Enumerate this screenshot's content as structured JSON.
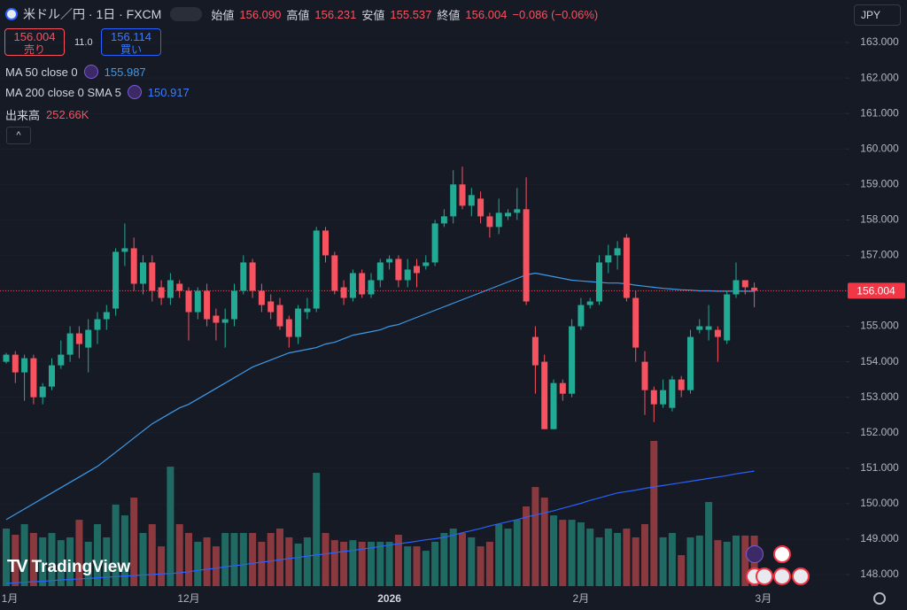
{
  "header": {
    "symbol": "米ドル／円 · 1日 · FXCM",
    "ohlc": [
      {
        "label": "始値",
        "value": "156.090"
      },
      {
        "label": "高値",
        "value": "156.231"
      },
      {
        "label": "安値",
        "value": "155.537"
      },
      {
        "label": "終値",
        "value": "156.004"
      }
    ],
    "change": "−0.086 (−0.06%)"
  },
  "trade": {
    "sell_price": "156.004",
    "sell_label": "売り",
    "spread": "11.0",
    "buy_price": "156.114",
    "buy_label": "買い"
  },
  "currency": "JPY",
  "watermark": "TradingView",
  "chart_data": {
    "type": "candlestick",
    "categories": [
      "1月",
      null,
      null,
      null,
      null,
      null,
      null,
      null,
      null,
      null,
      null,
      null,
      null,
      null,
      null,
      null,
      null,
      null,
      null,
      null,
      "12月",
      null,
      null,
      null,
      null,
      null,
      null,
      null,
      null,
      null,
      null,
      null,
      null,
      null,
      null,
      null,
      null,
      null,
      null,
      null,
      null,
      null,
      "2026",
      null,
      null,
      null,
      null,
      null,
      null,
      null,
      null,
      null,
      null,
      null,
      null,
      null,
      null,
      null,
      null,
      null,
      null,
      null,
      null,
      "2月",
      null,
      null,
      null,
      null,
      null,
      null,
      null,
      null,
      null,
      null,
      null,
      null,
      null,
      null,
      null,
      null,
      null,
      null,
      null,
      "3月"
    ],
    "open": [
      154.0,
      154.2,
      153.7,
      154.1,
      153.0,
      153.3,
      153.9,
      154.2,
      154.8,
      154.4,
      154.9,
      155.2,
      155.5,
      157.1,
      157.2,
      156.2,
      156.8,
      156.1,
      155.8,
      156.2,
      156.0,
      155.4,
      156.0,
      155.3,
      155.1,
      155.2,
      156.0,
      156.8,
      156.0,
      155.7,
      155.6,
      155.2,
      154.7,
      155.4,
      155.5,
      157.7,
      157.0,
      156.1,
      155.8,
      156.5,
      155.9,
      156.3,
      156.8,
      156.9,
      156.3,
      156.7,
      156.7,
      156.8,
      157.9,
      158.1,
      159.0,
      158.4,
      158.6,
      158.1,
      157.8,
      158.1,
      158.2,
      158.3,
      154.7,
      154.0,
      152.1,
      153.4,
      153.1,
      155.0,
      155.6,
      155.7,
      156.8,
      157.0,
      157.5,
      155.8,
      154.0,
      153.2,
      152.8,
      152.7,
      153.5,
      153.2,
      154.9,
      154.9,
      154.9,
      154.6,
      155.9,
      156.3,
      156.09,
      null
    ],
    "high": [
      154.25,
      154.3,
      154.2,
      154.2,
      153.4,
      154.1,
      154.6,
      155.0,
      155.0,
      155.2,
      155.4,
      155.6,
      157.2,
      157.9,
      157.5,
      157.0,
      157.0,
      156.3,
      156.5,
      156.3,
      156.1,
      156.1,
      156.2,
      155.5,
      155.5,
      156.2,
      157.0,
      156.9,
      156.2,
      155.9,
      155.8,
      155.3,
      155.6,
      155.8,
      157.8,
      157.8,
      157.1,
      156.3,
      156.6,
      156.6,
      156.5,
      156.9,
      157.0,
      157.0,
      156.9,
      156.9,
      157.0,
      158.0,
      158.3,
      159.4,
      159.5,
      158.9,
      158.8,
      158.2,
      158.6,
      158.3,
      158.9,
      159.2,
      155.0,
      154.2,
      153.5,
      153.5,
      155.2,
      155.8,
      155.8,
      157.0,
      157.3,
      157.4,
      157.6,
      156.0,
      154.3,
      153.3,
      153.5,
      153.6,
      153.6,
      154.9,
      155.2,
      155.6,
      155.0,
      156.0,
      156.8,
      156.3,
      156.231,
      null
    ],
    "low": [
      153.95,
      153.4,
      152.9,
      152.8,
      152.8,
      153.2,
      153.8,
      154.0,
      154.1,
      153.7,
      154.5,
      154.9,
      155.3,
      156.7,
      156.0,
      155.9,
      155.7,
      155.6,
      155.6,
      155.8,
      154.6,
      155.2,
      155.0,
      154.6,
      154.4,
      155.0,
      155.9,
      155.8,
      155.4,
      155.2,
      154.9,
      154.4,
      154.5,
      155.2,
      155.4,
      156.8,
      155.9,
      155.6,
      155.7,
      155.8,
      155.8,
      156.1,
      156.6,
      156.1,
      156.1,
      156.1,
      156.6,
      156.7,
      157.8,
      157.9,
      158.3,
      158.1,
      157.9,
      157.5,
      157.6,
      158.0,
      158.0,
      155.6,
      153.1,
      152.1,
      152.1,
      152.9,
      153.0,
      154.9,
      155.5,
      155.6,
      156.5,
      156.6,
      155.7,
      154.0,
      152.5,
      152.3,
      152.7,
      152.6,
      153.0,
      153.1,
      154.8,
      154.6,
      154.0,
      154.5,
      155.8,
      155.9,
      155.537,
      null
    ],
    "close": [
      154.2,
      153.7,
      154.1,
      153.0,
      153.3,
      153.9,
      154.2,
      154.8,
      154.5,
      154.9,
      155.2,
      155.4,
      157.1,
      157.2,
      156.2,
      156.8,
      156.0,
      155.8,
      156.3,
      156.0,
      155.4,
      156.0,
      155.2,
      155.1,
      155.2,
      156.0,
      156.8,
      156.0,
      155.6,
      155.4,
      155.0,
      154.7,
      155.5,
      155.5,
      157.7,
      157.0,
      156.0,
      155.8,
      156.5,
      155.9,
      156.3,
      156.8,
      156.9,
      156.3,
      156.6,
      156.5,
      156.8,
      157.9,
      158.1,
      159.0,
      158.4,
      158.7,
      158.1,
      157.8,
      158.2,
      158.2,
      158.3,
      155.7,
      153.9,
      152.1,
      153.4,
      153.1,
      155.0,
      155.6,
      155.7,
      156.8,
      157.0,
      157.2,
      155.8,
      154.4,
      153.2,
      152.8,
      153.2,
      153.5,
      153.2,
      154.7,
      155.0,
      155.0,
      154.7,
      155.9,
      156.3,
      156.1,
      156.004,
      null
    ],
    "up_color": "#22ab94",
    "down_color": "#f7525f",
    "ylim": [
      147.6,
      164.2
    ],
    "yticks": [
      {
        "value": 163,
        "label": "163.000"
      },
      {
        "value": 162,
        "label": "162.000"
      },
      {
        "value": 161,
        "label": "161.000"
      },
      {
        "value": 160,
        "label": "160.000"
      },
      {
        "value": 159,
        "label": "159.000"
      },
      {
        "value": 158,
        "label": "158.000"
      },
      {
        "value": 157,
        "label": "157.000"
      },
      {
        "value": 156,
        "label": "156.000"
      },
      {
        "value": 155,
        "label": "155.000"
      },
      {
        "value": 154,
        "label": "154.000"
      },
      {
        "value": 153,
        "label": "153.000"
      },
      {
        "value": 152,
        "label": "152.000"
      },
      {
        "value": 151,
        "label": "151.000"
      },
      {
        "value": 150,
        "label": "150.000"
      },
      {
        "value": 149,
        "label": "149.000"
      },
      {
        "value": 148,
        "label": "148.000"
      }
    ],
    "grid": true,
    "series": [
      {
        "name": "MA 50 close 0",
        "color": "#3d9ae8",
        "values": [
          149.55,
          149.7,
          149.85,
          150.0,
          150.15,
          150.3,
          150.45,
          150.6,
          150.75,
          150.9,
          151.05,
          151.25,
          151.45,
          151.65,
          151.85,
          152.05,
          152.25,
          152.4,
          152.55,
          152.7,
          152.8,
          152.95,
          153.1,
          153.25,
          153.4,
          153.55,
          153.7,
          153.85,
          153.95,
          154.05,
          154.15,
          154.25,
          154.3,
          154.35,
          154.4,
          154.5,
          154.55,
          154.65,
          154.75,
          154.8,
          154.85,
          154.9,
          155.0,
          155.05,
          155.15,
          155.25,
          155.35,
          155.45,
          155.55,
          155.65,
          155.75,
          155.85,
          155.95,
          156.05,
          156.15,
          156.25,
          156.35,
          156.45,
          156.5,
          156.45,
          156.4,
          156.35,
          156.3,
          156.28,
          156.26,
          156.24,
          156.22,
          156.22,
          156.2,
          156.16,
          156.13,
          156.1,
          156.07,
          156.05,
          156.03,
          156.02,
          156.0,
          156.0,
          155.99,
          155.99,
          155.99,
          155.99,
          155.987,
          null
        ]
      },
      {
        "name": "MA 200 close 0 SMA 5",
        "color": "#2962ff",
        "values": [
          147.75,
          147.77,
          147.78,
          147.8,
          147.81,
          147.83,
          147.85,
          147.86,
          147.88,
          147.89,
          147.91,
          147.93,
          147.94,
          147.96,
          147.97,
          147.99,
          148.0,
          148.02,
          148.03,
          148.05,
          148.08,
          148.12,
          148.15,
          148.18,
          148.22,
          148.25,
          148.28,
          148.32,
          148.35,
          148.38,
          148.42,
          148.45,
          148.48,
          148.52,
          148.55,
          148.58,
          148.62,
          148.65,
          148.68,
          148.72,
          148.75,
          148.79,
          148.83,
          148.87,
          148.9,
          148.94,
          148.98,
          149.01,
          149.05,
          149.11,
          149.18,
          149.24,
          149.3,
          149.37,
          149.43,
          149.49,
          149.55,
          149.62,
          149.68,
          149.74,
          149.8,
          149.87,
          149.94,
          150.01,
          150.09,
          150.16,
          150.23,
          150.3,
          150.34,
          150.38,
          150.43,
          150.47,
          150.51,
          150.55,
          150.59,
          150.63,
          150.67,
          150.71,
          150.75,
          150.79,
          150.84,
          150.88,
          150.917,
          null
        ]
      }
    ],
    "volume": {
      "name": "出来高",
      "last_label": "252.66K",
      "up_color": "#1f6b63",
      "down_color": "#8a3a3f",
      "values": [
        288,
        257,
        310,
        266,
        244,
        266,
        230,
        244,
        332,
        222,
        310,
        244,
        408,
        354,
        443,
        266,
        310,
        199,
        598,
        310,
        266,
        222,
        244,
        199,
        266,
        266,
        266,
        266,
        222,
        266,
        288,
        244,
        213,
        244,
        567,
        266,
        230,
        222,
        230,
        222,
        222,
        222,
        222,
        257,
        199,
        199,
        177,
        222,
        266,
        288,
        266,
        244,
        199,
        222,
        310,
        288,
        332,
        399,
        496,
        443,
        354,
        332,
        332,
        319,
        288,
        244,
        288,
        266,
        288,
        244,
        310,
        727,
        244,
        266,
        155,
        244,
        253,
        421,
        230,
        222,
        253,
        253,
        252.66,
        null
      ]
    }
  }
}
